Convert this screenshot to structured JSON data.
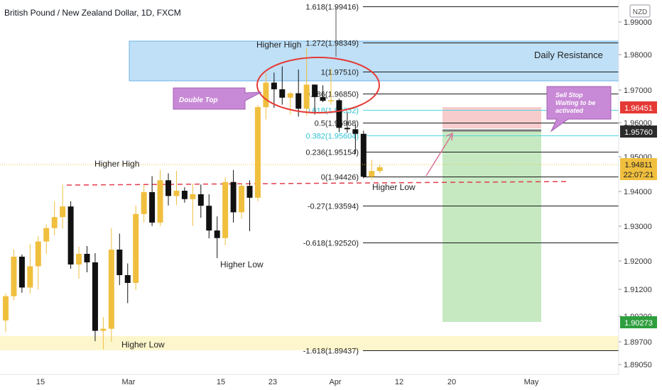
{
  "header": {
    "symbol_title": "British Pound / New Zealand Dollar, 1D, FXCM"
  },
  "currency_badge": "NZD",
  "colors": {
    "up": "#f0bf3e",
    "down": "#111111",
    "fib_line": "#1a1a1a",
    "fib_cyan": "#4fd3e0",
    "resistance_fill": "#bfe0f7",
    "resistance_border": "#6cb2e8",
    "support_fill": "#fdf6cc",
    "stop_zone": "#f6cccc",
    "profit_zone": "#c6e9c2",
    "dashed": "#e33c4c",
    "callout": "#c889d6",
    "ellipse": "#e53935",
    "label_red": "#e53935",
    "label_dark": "#2b2b2b",
    "label_green": "#2e9e3e"
  },
  "annotations": {
    "daily_resistance": "Daily Resistance",
    "double_top": "Double Top",
    "sell_stop": "Sell Stop Waiting to be activated",
    "higher_high_1": "Higher High",
    "higher_high_2": "Higher High",
    "higher_low_1": "Higher Low",
    "higher_low_2": "Higher Low",
    "higher_low_3": "Higher Low"
  },
  "price_labels": {
    "stop": "1.96451",
    "entry": "1.95760",
    "current": "1.94811",
    "countdown": "22:07:21",
    "target": "1.90273"
  },
  "chart_data": {
    "type": "candlestick",
    "title": "British Pound / New Zealand Dollar, 1D, FXCM",
    "y_ticks": [
      "1.99000",
      "1.98000",
      "1.97000",
      "1.96000",
      "1.95000",
      "1.94000",
      "1.93000",
      "1.92000",
      "1.91200",
      "1.90200",
      "1.89700",
      "1.89050"
    ],
    "x_ticks": [
      "15",
      "Mar",
      "15",
      "23",
      "Apr",
      "12",
      "20",
      "May"
    ],
    "fib_levels": [
      {
        "ratio": "1.618",
        "price": 1.99416,
        "label": "1.618(1.99416)"
      },
      {
        "ratio": "1.272",
        "price": 1.98349,
        "label": "1.272(1.98349)"
      },
      {
        "ratio": "1",
        "price": 1.9751,
        "label": "1(1.97510)"
      },
      {
        "ratio": "0.786",
        "price": 1.9685,
        "label": "0.786(1.96850)"
      },
      {
        "ratio": "0.618",
        "price": 1.96332,
        "label": "0.618(1.96332)"
      },
      {
        "ratio": "0.5",
        "price": 1.95968,
        "label": "0.5(1.95968)"
      },
      {
        "ratio": "0.382",
        "price": 1.95604,
        "label": "0.382(1.95604)"
      },
      {
        "ratio": "0.236",
        "price": 1.95154,
        "label": "0.236(1.95154)"
      },
      {
        "ratio": "0",
        "price": 1.94426,
        "label": "0(1.94426)"
      },
      {
        "ratio": "-0.27",
        "price": 1.93594,
        "label": "-0.27(1.93594)"
      },
      {
        "ratio": "-0.618",
        "price": 1.9252,
        "label": "-0.618(1.92520)"
      },
      {
        "ratio": "-1.618",
        "price": 1.89437,
        "label": "-1.618(1.89437)"
      }
    ],
    "zones": {
      "daily_resistance": [
        1.9727,
        1.9842
      ],
      "support": [
        1.8936,
        1.899
      ],
      "stop_loss_zone": [
        1.9576,
        1.96451
      ],
      "take_profit_zone": [
        1.90273,
        1.9576
      ]
    },
    "candles": [
      {
        "o": 1.903,
        "h": 1.9108,
        "l": 1.8996,
        "c": 1.91
      },
      {
        "o": 1.91,
        "h": 1.9233,
        "l": 1.9088,
        "c": 1.9212
      },
      {
        "o": 1.9212,
        "h": 1.9218,
        "l": 1.911,
        "c": 1.9125
      },
      {
        "o": 1.9125,
        "h": 1.9248,
        "l": 1.9108,
        "c": 1.9185
      },
      {
        "o": 1.9185,
        "h": 1.927,
        "l": 1.912,
        "c": 1.9255
      },
      {
        "o": 1.9255,
        "h": 1.9305,
        "l": 1.922,
        "c": 1.9294
      },
      {
        "o": 1.9294,
        "h": 1.9372,
        "l": 1.9273,
        "c": 1.9326
      },
      {
        "o": 1.9326,
        "h": 1.942,
        "l": 1.9292,
        "c": 1.9357
      },
      {
        "o": 1.9357,
        "h": 1.9372,
        "l": 1.9178,
        "c": 1.919
      },
      {
        "o": 1.919,
        "h": 1.924,
        "l": 1.915,
        "c": 1.922
      },
      {
        "o": 1.922,
        "h": 1.9242,
        "l": 1.9168,
        "c": 1.9196
      },
      {
        "o": 1.9196,
        "h": 1.9222,
        "l": 1.897,
        "c": 1.9
      },
      {
        "o": 1.9,
        "h": 1.904,
        "l": 1.8946,
        "c": 1.9006
      },
      {
        "o": 1.9006,
        "h": 1.9294,
        "l": 1.8968,
        "c": 1.9232
      },
      {
        "o": 1.9232,
        "h": 1.9278,
        "l": 1.9132,
        "c": 1.916
      },
      {
        "o": 1.916,
        "h": 1.9193,
        "l": 1.908,
        "c": 1.9138
      },
      {
        "o": 1.9138,
        "h": 1.936,
        "l": 1.9118,
        "c": 1.9335
      },
      {
        "o": 1.9335,
        "h": 1.9418,
        "l": 1.931,
        "c": 1.9398
      },
      {
        "o": 1.9398,
        "h": 1.9444,
        "l": 1.93,
        "c": 1.931
      },
      {
        "o": 1.931,
        "h": 1.9462,
        "l": 1.93,
        "c": 1.9432
      },
      {
        "o": 1.9432,
        "h": 1.9452,
        "l": 1.936,
        "c": 1.9387
      },
      {
        "o": 1.9387,
        "h": 1.9459,
        "l": 1.9361,
        "c": 1.9402
      },
      {
        "o": 1.9402,
        "h": 1.9412,
        "l": 1.9368,
        "c": 1.9378
      },
      {
        "o": 1.9378,
        "h": 1.9422,
        "l": 1.93,
        "c": 1.9392
      },
      {
        "o": 1.9392,
        "h": 1.942,
        "l": 1.9324,
        "c": 1.9359
      },
      {
        "o": 1.9359,
        "h": 1.9392,
        "l": 1.9264,
        "c": 1.9287
      },
      {
        "o": 1.9287,
        "h": 1.9328,
        "l": 1.9208,
        "c": 1.9265
      },
      {
        "o": 1.9265,
        "h": 1.944,
        "l": 1.9244,
        "c": 1.9427
      },
      {
        "o": 1.9427,
        "h": 1.9462,
        "l": 1.931,
        "c": 1.934
      },
      {
        "o": 1.934,
        "h": 1.9422,
        "l": 1.9321,
        "c": 1.9416
      },
      {
        "o": 1.9416,
        "h": 1.9432,
        "l": 1.9285,
        "c": 1.9382
      },
      {
        "o": 1.9382,
        "h": 1.9648,
        "l": 1.9372,
        "c": 1.9642
      },
      {
        "o": 1.9642,
        "h": 1.9747,
        "l": 1.9606,
        "c": 1.9718
      },
      {
        "o": 1.9718,
        "h": 1.9748,
        "l": 1.964,
        "c": 1.9698
      },
      {
        "o": 1.9698,
        "h": 1.9766,
        "l": 1.965,
        "c": 1.9672
      },
      {
        "o": 1.9672,
        "h": 1.969,
        "l": 1.962,
        "c": 1.9686
      },
      {
        "o": 1.9686,
        "h": 1.9757,
        "l": 1.9614,
        "c": 1.9637
      },
      {
        "o": 1.9637,
        "h": 1.9818,
        "l": 1.9616,
        "c": 1.9712
      },
      {
        "o": 1.9712,
        "h": 1.9712,
        "l": 1.962,
        "c": 1.9674
      },
      {
        "o": 1.9674,
        "h": 1.971,
        "l": 1.9658,
        "c": 1.9662
      },
      {
        "o": 1.9662,
        "h": 1.976,
        "l": 1.965,
        "c": 1.9664
      },
      {
        "o": 1.9664,
        "h": 1.9669,
        "l": 1.957,
        "c": 1.9582
      },
      {
        "o": 1.9582,
        "h": 1.9626,
        "l": 1.9568,
        "c": 1.9578
      },
      {
        "o": 1.9578,
        "h": 1.959,
        "l": 1.951,
        "c": 1.9565
      },
      {
        "o": 1.9565,
        "h": 1.9574,
        "l": 1.9438,
        "c": 1.9442
      },
      {
        "o": 1.9442,
        "h": 1.9492,
        "l": 1.9434,
        "c": 1.9459
      },
      {
        "o": 1.9459,
        "h": 1.9479,
        "l": 1.9452,
        "c": 1.947
      }
    ]
  }
}
